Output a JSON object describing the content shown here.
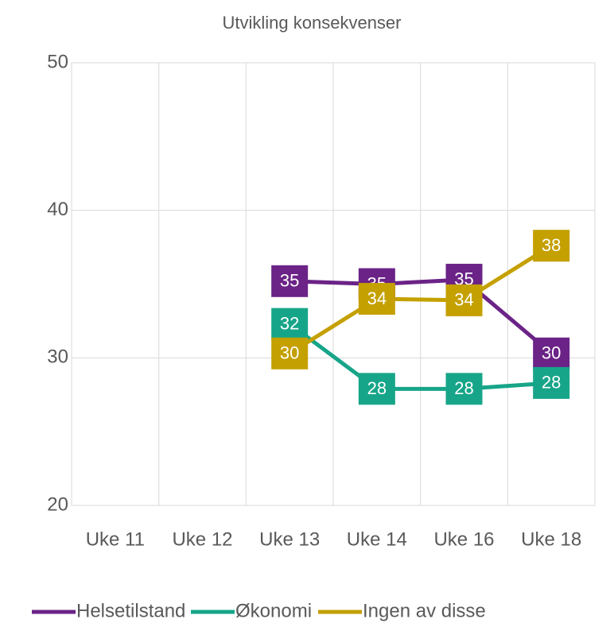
{
  "chart_data": {
    "type": "line",
    "title": "Utvikling konsekvenser",
    "categories": [
      "Uke 11",
      "Uke 12",
      "Uke 13",
      "Uke 14",
      "Uke 16",
      "Uke 18"
    ],
    "series": [
      {
        "name": "Helsetilstand",
        "color": "#6b2387",
        "values": [
          null,
          null,
          35.2,
          35.0,
          35.3,
          30.3
        ],
        "value_labels": [
          null,
          null,
          "35",
          "35",
          "35",
          "30"
        ]
      },
      {
        "name": "Økonomi",
        "color": "#17a589",
        "values": [
          null,
          null,
          32.3,
          27.9,
          27.9,
          28.3
        ],
        "value_labels": [
          null,
          null,
          "32",
          "28",
          "28",
          "28"
        ]
      },
      {
        "name": "Ingen av disse",
        "color": "#c4a000",
        "values": [
          null,
          null,
          30.3,
          34.0,
          33.9,
          37.6
        ],
        "value_labels": [
          null,
          null,
          "30",
          "34",
          "34",
          "38"
        ]
      }
    ],
    "ylim": [
      20,
      50
    ],
    "yticks": [
      20,
      30,
      40,
      50
    ],
    "grid": true,
    "legend": "bottom"
  }
}
